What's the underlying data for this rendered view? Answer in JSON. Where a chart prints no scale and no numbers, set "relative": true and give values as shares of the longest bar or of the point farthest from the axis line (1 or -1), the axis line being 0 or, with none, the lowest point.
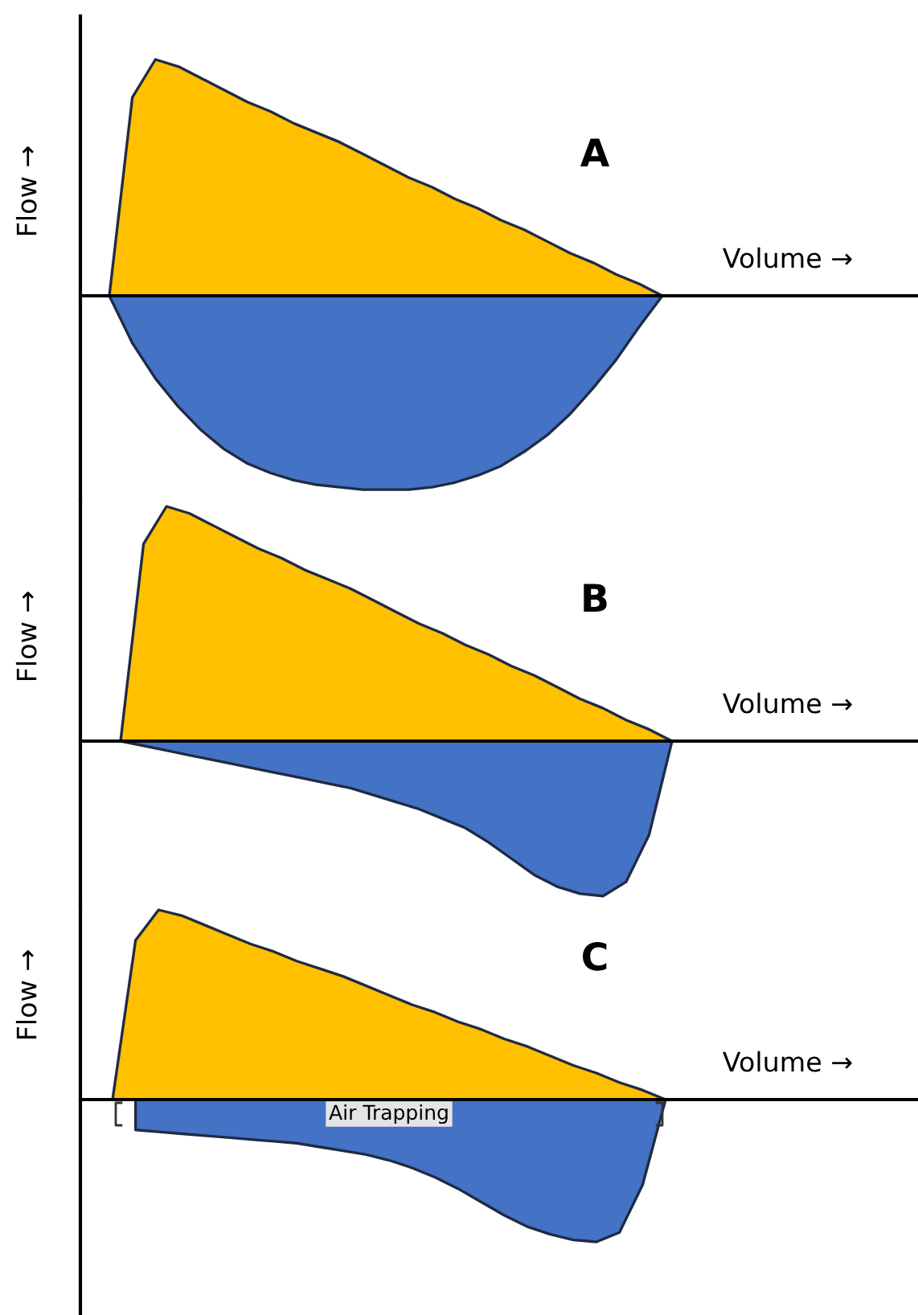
{
  "chart_data": [
    {
      "type": "area",
      "relative": true,
      "title": "A",
      "xlabel": "Volume →",
      "ylabel": "Flow →",
      "grid": false,
      "legend": false,
      "categories": [
        null,
        null,
        null,
        null,
        null,
        null,
        null,
        null,
        null,
        null,
        null,
        null,
        null,
        null,
        null,
        null,
        null,
        null,
        null,
        null,
        null,
        null,
        null,
        null,
        null
      ],
      "series": [
        {
          "color": "#ffc000",
          "values": [
            0,
            0.84,
            1.0,
            0.97,
            0.92,
            0.87,
            0.82,
            0.78,
            0.73,
            0.69,
            0.65,
            0.6,
            0.55,
            0.5,
            0.46,
            0.41,
            0.37,
            0.32,
            0.28,
            0.23,
            0.18,
            0.14,
            0.09,
            0.05,
            0
          ]
        },
        {
          "color": "#4472c4",
          "values": [
            0,
            -0.2,
            -0.35,
            -0.47,
            -0.57,
            -0.65,
            -0.71,
            -0.75,
            -0.78,
            -0.8,
            -0.81,
            -0.82,
            -0.82,
            -0.82,
            -0.81,
            -0.79,
            -0.76,
            -0.72,
            -0.66,
            -0.59,
            -0.5,
            -0.39,
            -0.27,
            -0.13,
            0
          ]
        }
      ]
    },
    {
      "type": "area",
      "relative": true,
      "title": "B",
      "xlabel": "Volume →",
      "ylabel": "Flow →",
      "grid": false,
      "legend": false,
      "categories": [
        null,
        null,
        null,
        null,
        null,
        null,
        null,
        null,
        null,
        null,
        null,
        null,
        null,
        null,
        null,
        null,
        null,
        null,
        null,
        null,
        null,
        null,
        null,
        null,
        null
      ],
      "series": [
        {
          "color": "#ffc000",
          "values": [
            0,
            0.84,
            1.0,
            0.97,
            0.92,
            0.87,
            0.82,
            0.78,
            0.73,
            0.69,
            0.65,
            0.6,
            0.55,
            0.5,
            0.46,
            0.41,
            0.37,
            0.32,
            0.28,
            0.23,
            0.18,
            0.14,
            0.09,
            0.05,
            0
          ]
        },
        {
          "color": "#4472c4",
          "values": [
            0,
            -0.02,
            -0.04,
            -0.06,
            -0.08,
            -0.1,
            -0.12,
            -0.14,
            -0.16,
            -0.18,
            -0.2,
            -0.23,
            -0.26,
            -0.29,
            -0.33,
            -0.37,
            -0.43,
            -0.5,
            -0.57,
            -0.62,
            -0.65,
            -0.66,
            -0.6,
            -0.4,
            0
          ]
        }
      ]
    },
    {
      "type": "area",
      "relative": true,
      "title": "C",
      "xlabel": "Volume →",
      "ylabel": "Flow →",
      "grid": false,
      "legend": false,
      "annotations": [
        "Air Trapping"
      ],
      "categories": [
        null,
        null,
        null,
        null,
        null,
        null,
        null,
        null,
        null,
        null,
        null,
        null,
        null,
        null,
        null,
        null,
        null,
        null,
        null,
        null,
        null,
        null,
        null,
        null,
        null
      ],
      "series": [
        {
          "color": "#ffc000",
          "values": [
            0,
            0.84,
            1.0,
            0.97,
            0.92,
            0.87,
            0.82,
            0.78,
            0.73,
            0.69,
            0.65,
            0.6,
            0.55,
            0.5,
            0.46,
            0.41,
            0.37,
            0.32,
            0.28,
            0.23,
            0.18,
            0.14,
            0.09,
            0.05,
            0
          ]
        },
        {
          "color": "#4472c4",
          "values": [
            null,
            -0.16,
            -0.17,
            -0.18,
            -0.19,
            -0.2,
            -0.21,
            -0.22,
            -0.23,
            -0.25,
            -0.27,
            -0.29,
            -0.32,
            -0.36,
            -0.41,
            -0.47,
            -0.54,
            -0.61,
            -0.67,
            -0.71,
            -0.74,
            -0.75,
            -0.7,
            -0.45,
            0
          ]
        }
      ]
    }
  ]
}
